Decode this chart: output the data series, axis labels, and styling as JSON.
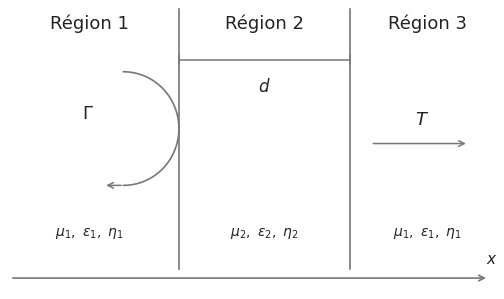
{
  "bg_color": "#ffffff",
  "line_color": "#777777",
  "text_color": "#222222",
  "r2x": 0.355,
  "r3x": 0.695,
  "region1_label": "Région 1",
  "region2_label": "Région 2",
  "region3_label": "Région 3",
  "params1": "$\\mu_1,\\ \\varepsilon_1,\\ \\eta_1$",
  "params2": "$\\mu_2,\\ \\varepsilon_2,\\ \\eta_2$",
  "params3": "$\\mu_1,\\ \\varepsilon_1,\\ \\eta_1$",
  "gamma_label": "$\\Gamma$",
  "T_label": "$T$",
  "d_label": "$d$",
  "x_label": "$x$"
}
